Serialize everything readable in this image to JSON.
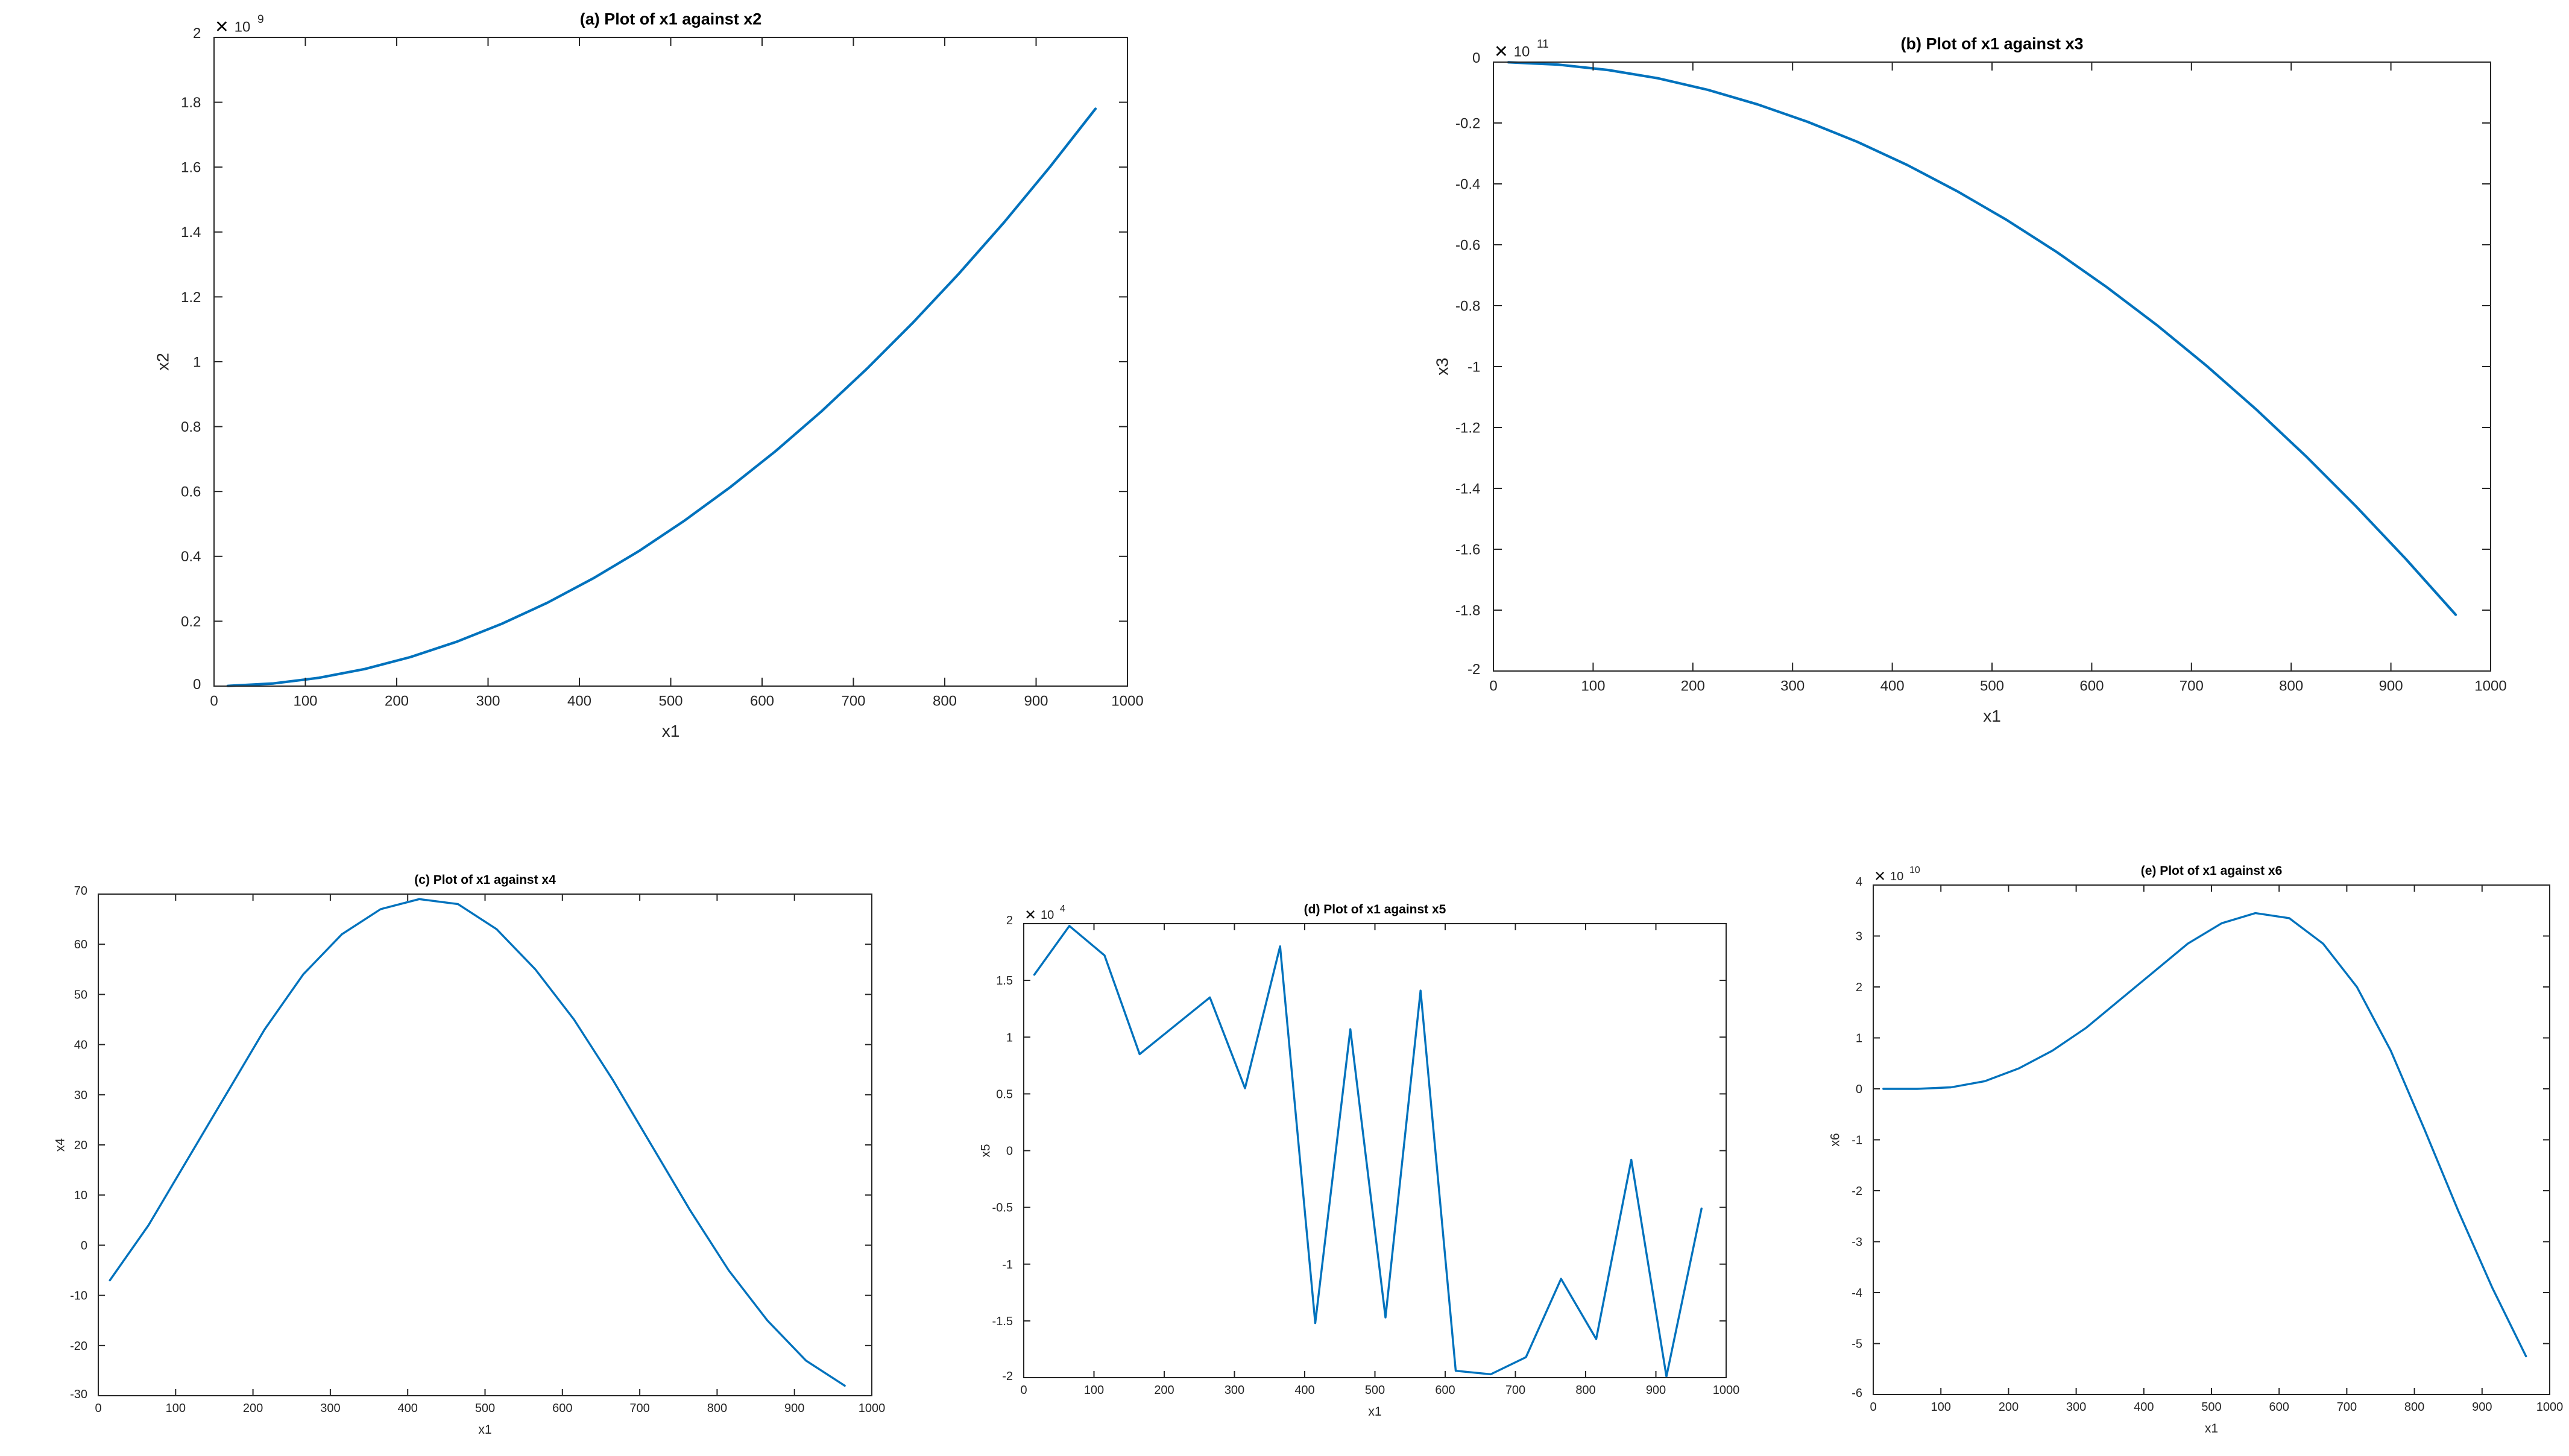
{
  "chart_data": [
    {
      "type": "line",
      "title": "(a) Plot of x1 against x2",
      "xlabel": "x1",
      "ylabel": "x2",
      "xlim": [
        0,
        1000
      ],
      "ylim": [
        0,
        2
      ],
      "xticks": [
        0,
        100,
        200,
        300,
        400,
        500,
        600,
        700,
        800,
        900,
        1000
      ],
      "xtick_labels": [
        "0",
        "100",
        "200",
        "300",
        "400",
        "500",
        "600",
        "700",
        "800",
        "900",
        "1000"
      ],
      "yticks": [
        0,
        0.2,
        0.4,
        0.6,
        0.8,
        1,
        1.2,
        1.4,
        1.6,
        1.8,
        2
      ],
      "ytick_labels": [
        "0",
        "0.2",
        "0.4",
        "0.6",
        "0.8",
        "1",
        "1.2",
        "1.4",
        "1.6",
        "1.8",
        "2"
      ],
      "exponent_label": "10",
      "exponent_power": "9",
      "exponent_sign": "×",
      "grid": false,
      "series": [
        {
          "color": "#0072bd",
          "x": [
            15,
            65,
            115,
            165,
            215,
            265,
            315,
            365,
            415,
            465,
            515,
            565,
            615,
            665,
            715,
            765,
            815,
            865,
            915,
            965
          ],
          "y": [
            0.0005,
            0.0082,
            0.0256,
            0.0526,
            0.0894,
            0.136,
            0.192,
            0.257,
            0.332,
            0.416,
            0.51,
            0.613,
            0.725,
            0.847,
            0.979,
            1.12,
            1.27,
            1.43,
            1.6,
            1.78
          ]
        }
      ]
    },
    {
      "type": "line",
      "title": "(b) Plot of x1 against x3",
      "xlabel": "x1",
      "ylabel": "x3",
      "xlim": [
        0,
        1000
      ],
      "ylim": [
        -2,
        0
      ],
      "xticks": [
        0,
        100,
        200,
        300,
        400,
        500,
        600,
        700,
        800,
        900,
        1000
      ],
      "xtick_labels": [
        "0",
        "100",
        "200",
        "300",
        "400",
        "500",
        "600",
        "700",
        "800",
        "900",
        "1000"
      ],
      "yticks": [
        -2,
        -1.8,
        -1.6,
        -1.4,
        -1.2,
        -1,
        -0.8,
        -0.6,
        -0.4,
        -0.2,
        0
      ],
      "ytick_labels": [
        "-2",
        "-1.8",
        "-1.6",
        "-1.4",
        "-1.2",
        "-1",
        "-0.8",
        "-0.6",
        "-0.4",
        "-0.2",
        "0"
      ],
      "exponent_label": "10",
      "exponent_power": "11",
      "exponent_sign": "×",
      "grid": false,
      "series": [
        {
          "color": "#0072bd",
          "x": [
            15,
            65,
            115,
            165,
            215,
            265,
            315,
            365,
            415,
            465,
            515,
            565,
            615,
            665,
            715,
            765,
            815,
            865,
            915,
            965
          ],
          "y": [
            -0.0005,
            -0.0083,
            -0.026,
            -0.053,
            -0.091,
            -0.139,
            -0.196,
            -0.262,
            -0.338,
            -0.424,
            -0.519,
            -0.624,
            -0.739,
            -0.863,
            -0.997,
            -1.141,
            -1.295,
            -1.459,
            -1.632,
            -1.815
          ]
        }
      ]
    },
    {
      "type": "line",
      "title": "(c) Plot of x1 against x4",
      "xlabel": "x1",
      "ylabel": "x4",
      "xlim": [
        0,
        1000
      ],
      "ylim": [
        -30,
        70
      ],
      "xticks": [
        0,
        100,
        200,
        300,
        400,
        500,
        600,
        700,
        800,
        900,
        1000
      ],
      "xtick_labels": [
        "0",
        "100",
        "200",
        "300",
        "400",
        "500",
        "600",
        "700",
        "800",
        "900",
        "1000"
      ],
      "yticks": [
        -30,
        -20,
        -10,
        0,
        10,
        20,
        30,
        40,
        50,
        60,
        70
      ],
      "ytick_labels": [
        "-30",
        "-20",
        "-10",
        "0",
        "10",
        "20",
        "30",
        "40",
        "50",
        "60",
        "70"
      ],
      "grid": false,
      "series": [
        {
          "color": "#0072bd",
          "x": [
            15,
            65,
            115,
            165,
            215,
            265,
            315,
            365,
            415,
            465,
            515,
            565,
            615,
            665,
            715,
            765,
            815,
            865,
            915,
            965
          ],
          "y": [
            -7,
            4,
            17,
            30,
            43,
            54,
            62,
            67,
            69,
            68,
            63,
            55,
            45,
            33,
            20,
            7,
            -5,
            -15,
            -23,
            -28
          ]
        }
      ]
    },
    {
      "type": "line",
      "title": "(d) Plot of x1 against x5",
      "xlabel": "x1",
      "ylabel": "x5",
      "xlim": [
        0,
        1000
      ],
      "ylim": [
        -2,
        2
      ],
      "xticks": [
        0,
        100,
        200,
        300,
        400,
        500,
        600,
        700,
        800,
        900,
        1000
      ],
      "xtick_labels": [
        "0",
        "100",
        "200",
        "300",
        "400",
        "500",
        "600",
        "700",
        "800",
        "900",
        "1000"
      ],
      "yticks": [
        -2,
        -1.5,
        -1,
        -0.5,
        0,
        0.5,
        1,
        1.5,
        2
      ],
      "ytick_labels": [
        "-2",
        "-1.5",
        "-1",
        "-0.5",
        "0",
        "0.5",
        "1",
        "1.5",
        "2"
      ],
      "exponent_label": "10",
      "exponent_power": "4",
      "exponent_sign": "×",
      "grid": false,
      "series": [
        {
          "color": "#0072bd",
          "x": [
            15,
            65,
            115,
            165,
            215,
            265,
            315,
            365,
            415,
            465,
            515,
            565,
            615,
            665,
            715,
            765,
            815,
            865,
            915,
            965
          ],
          "y": [
            1.55,
            1.98,
            1.72,
            0.85,
            1.1,
            1.35,
            0.55,
            1.8,
            -1.52,
            1.07,
            -1.47,
            1.41,
            -1.94,
            -1.97,
            -1.82,
            -1.13,
            -1.66,
            -0.08,
            -1.99,
            -0.51
          ]
        }
      ]
    },
    {
      "type": "line",
      "title": "(e) Plot of x1 against x6",
      "xlabel": "x1",
      "ylabel": "x6",
      "xlim": [
        0,
        1000
      ],
      "ylim": [
        -6,
        4
      ],
      "xticks": [
        0,
        100,
        200,
        300,
        400,
        500,
        600,
        700,
        800,
        900,
        1000
      ],
      "xtick_labels": [
        "0",
        "100",
        "200",
        "300",
        "400",
        "500",
        "600",
        "700",
        "800",
        "900",
        "1000"
      ],
      "yticks": [
        -6,
        -5,
        -4,
        -3,
        -2,
        -1,
        0,
        1,
        2,
        3,
        4
      ],
      "ytick_labels": [
        "-6",
        "-5",
        "-4",
        "-3",
        "-2",
        "-1",
        "0",
        "1",
        "2",
        "3",
        "4"
      ],
      "exponent_label": "10",
      "exponent_power": "10",
      "exponent_sign": "×",
      "grid": false,
      "series": [
        {
          "color": "#0072bd",
          "x": [
            15,
            65,
            115,
            165,
            215,
            265,
            315,
            365,
            415,
            465,
            515,
            565,
            615,
            665,
            715,
            765,
            815,
            865,
            915,
            965
          ],
          "y": [
            0,
            0,
            0.03,
            0.15,
            0.4,
            0.75,
            1.2,
            1.75,
            2.3,
            2.85,
            3.25,
            3.45,
            3.35,
            2.85,
            2.0,
            0.75,
            -0.8,
            -2.4,
            -3.9,
            -5.25
          ]
        }
      ]
    }
  ]
}
